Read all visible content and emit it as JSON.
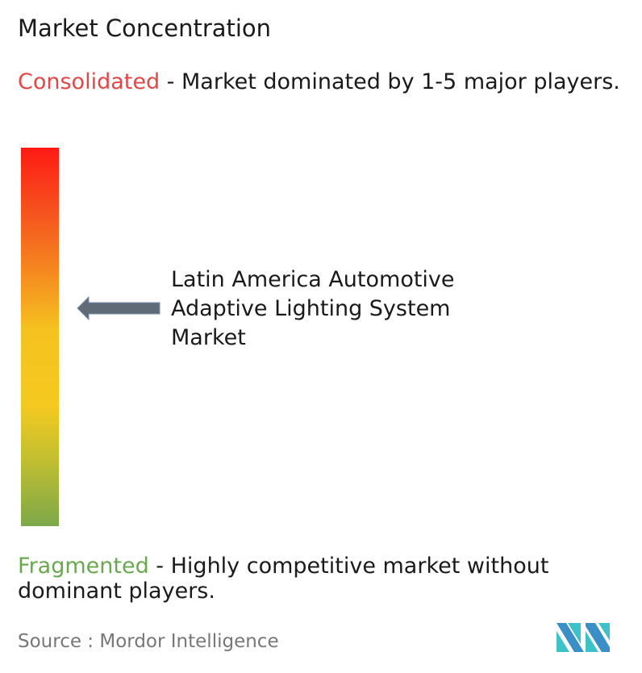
{
  "title": "Market Concentration",
  "consolidated": {
    "label": "Consolidated",
    "text": " - Market dominated by 1-5 major players.",
    "color": "#e04848"
  },
  "fragmented": {
    "label": "Fragmented",
    "text": " - Highly competitive market without dominant players.",
    "color": "#6aa84f"
  },
  "market_label": {
    "line1": "Latin America Automotive",
    "line2": "Adaptive Lighting System",
    "line3": "Market"
  },
  "scale_position": "upper-middle (yellow zone)",
  "source": "Source :  Mordor Intelligence",
  "logo": "Mordor Intelligence logo"
}
